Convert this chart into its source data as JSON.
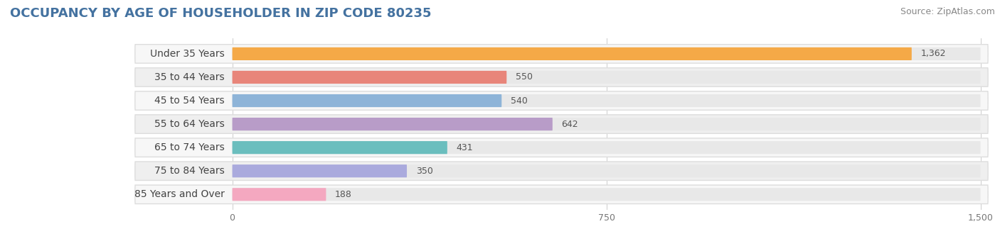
{
  "title": "OCCUPANCY BY AGE OF HOUSEHOLDER IN ZIP CODE 80235",
  "source": "Source: ZipAtlas.com",
  "categories": [
    "Under 35 Years",
    "35 to 44 Years",
    "45 to 54 Years",
    "55 to 64 Years",
    "65 to 74 Years",
    "75 to 84 Years",
    "85 Years and Over"
  ],
  "values": [
    1362,
    550,
    540,
    642,
    431,
    350,
    188
  ],
  "bar_colors": [
    "#F5A947",
    "#E8857A",
    "#8EB4D8",
    "#B89CC8",
    "#6BBEBE",
    "#AAAADD",
    "#F4A8C0"
  ],
  "bar_bg_color": "#E8E8E8",
  "row_bg_even": "#F7F7F7",
  "row_bg_odd": "#EFEFEF",
  "row_outline": "#DDDDDD",
  "xlim": [
    0,
    1500
  ],
  "xticks": [
    0,
    750,
    1500
  ],
  "title_fontsize": 13,
  "source_fontsize": 9,
  "label_fontsize": 10,
  "value_fontsize": 9,
  "background_color": "#FFFFFF",
  "title_color": "#4472A0",
  "source_color": "#888888",
  "label_color": "#444444",
  "value_color": "#555555"
}
